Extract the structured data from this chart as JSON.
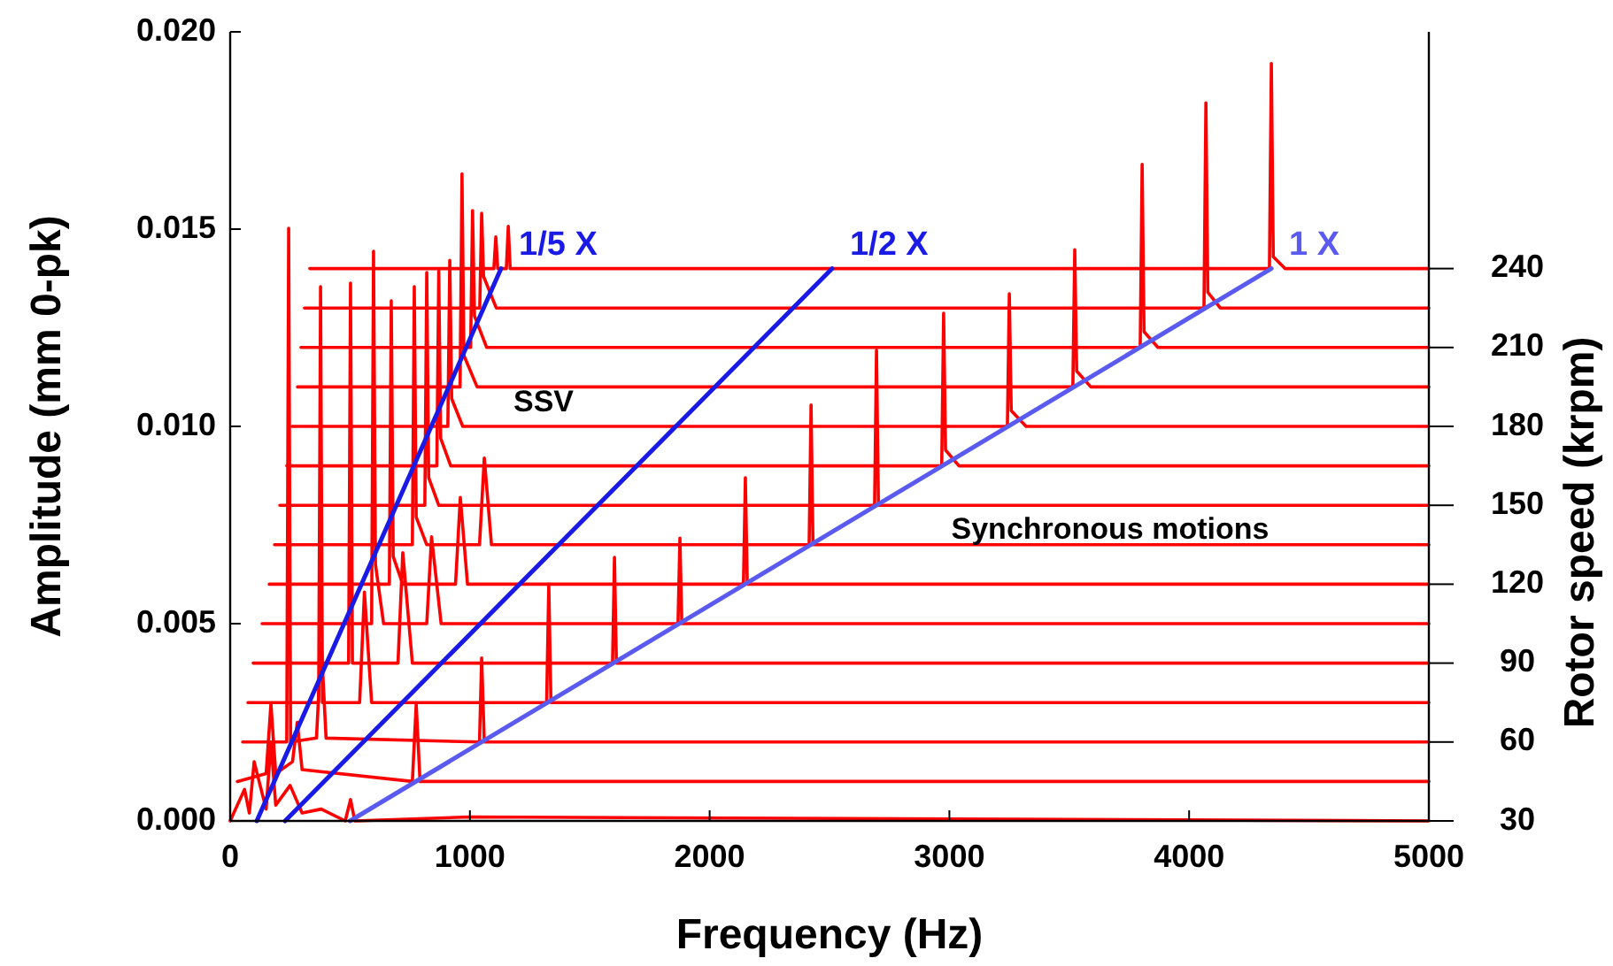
{
  "chart_data": {
    "type": "line",
    "xlabel": "Frequency (Hz)",
    "ylabel": "Amplitude (mm 0-pk)",
    "y2label": "Rotor speed (krpm)",
    "xlim": [
      0,
      5000
    ],
    "xticks": [
      0,
      1000,
      2000,
      3000,
      4000,
      5000
    ],
    "ylim": [
      0,
      0.02
    ],
    "yticks": [
      {
        "value": 0,
        "label": "0.000"
      },
      {
        "value": 0.005,
        "label": "0.005"
      },
      {
        "value": 0.01,
        "label": "0.010"
      },
      {
        "value": 0.015,
        "label": "0.015"
      },
      {
        "value": 0.02,
        "label": "0.020"
      }
    ],
    "y2lim": [
      30,
      330
    ],
    "y2ticks": [
      30,
      60,
      90,
      120,
      150,
      180,
      210,
      240
    ],
    "grid": false,
    "marker": "none",
    "line_style": "solid",
    "series": [
      {
        "color": "#ff0000",
        "x": [
          0,
          60,
          80,
          100,
          150,
          170,
          190,
          250,
          300,
          380,
          480,
          502,
          520,
          1000,
          5000
        ],
        "values": [
          0,
          0.0008,
          0.0002,
          0.0015,
          0.0003,
          0.002,
          0.0004,
          0.0009,
          0.0002,
          0.0003,
          0,
          0.00054,
          0,
          0.0001,
          0
        ]
      },
      {
        "color": "#ff0000",
        "x": [
          30,
          150,
          170,
          190,
          260,
          280,
          300,
          760,
          776,
          792,
          5000
        ],
        "values": [
          0.001,
          0.0012,
          0.00296,
          0.0012,
          0.0015,
          0.0025,
          0.0013,
          0.001,
          0.00296,
          0.001,
          0.001
        ]
      },
      {
        "color": "#ff0000",
        "x": [
          52,
          236,
          244,
          252,
          360,
          380,
          400,
          1040,
          1049,
          1060,
          5000
        ],
        "values": [
          0.002,
          0.002,
          0.01502,
          0.002,
          0.0021,
          0.0045,
          0.0021,
          0.002,
          0.00413,
          0.002,
          0.002
        ]
      },
      {
        "color": "#ff0000",
        "x": [
          74,
          369,
          377,
          385,
          540,
          560,
          590,
          1320,
          1329,
          1338,
          5000
        ],
        "values": [
          0.003,
          0.003,
          0.01354,
          0.003,
          0.003,
          0.0058,
          0.003,
          0.003,
          0.006,
          0.003,
          0.003
        ]
      },
      {
        "color": "#ff0000",
        "x": [
          96,
          494,
          502,
          510,
          700,
          720,
          760,
          1595,
          1603,
          1611,
          5000
        ],
        "values": [
          0.004,
          0.004,
          0.01363,
          0.004,
          0.004,
          0.0068,
          0.004,
          0.004,
          0.00668,
          0.004,
          0.004
        ]
      },
      {
        "color": "#ff0000",
        "x": [
          133,
          590,
          598,
          606,
          640,
          820,
          840,
          880,
          1868,
          1876,
          1884,
          5000
        ],
        "values": [
          0.005,
          0.005,
          0.01444,
          0.0065,
          0.005,
          0.005,
          0.0072,
          0.005,
          0.005,
          0.00717,
          0.005,
          0.005
        ]
      },
      {
        "color": "#ff0000",
        "x": [
          163,
          664,
          672,
          680,
          720,
          940,
          960,
          990,
          2141,
          2149,
          2157,
          5000
        ],
        "values": [
          0.006,
          0.006,
          0.01318,
          0.0067,
          0.006,
          0.006,
          0.0082,
          0.006,
          0.006,
          0.0087,
          0.006,
          0.006
        ]
      },
      {
        "color": "#ff0000",
        "x": [
          185,
          760,
          768,
          776,
          820,
          1040,
          1060,
          1090,
          2415,
          2423,
          2431,
          5000
        ],
        "values": [
          0.007,
          0.007,
          0.01354,
          0.0077,
          0.007,
          0.007,
          0.0092,
          0.007,
          0.007,
          0.01054,
          0.007,
          0.007
        ]
      },
      {
        "color": "#ff0000",
        "x": [
          207,
          812,
          820,
          828,
          870,
          2688,
          2696,
          2704,
          5000
        ],
        "values": [
          0.008,
          0.008,
          0.0139,
          0.0087,
          0.008,
          0.008,
          0.01193,
          0.008,
          0.008
        ]
      },
      {
        "color": "#ff0000",
        "x": [
          236,
          862,
          870,
          878,
          920,
          2968,
          2976,
          2984,
          3040,
          5000
        ],
        "values": [
          0.009,
          0.009,
          0.01394,
          0.0097,
          0.009,
          0.009,
          0.01287,
          0.0094,
          0.009,
          0.009
        ]
      },
      {
        "color": "#ff0000",
        "x": [
          258,
          908,
          916,
          924,
          970,
          3242,
          3250,
          3258,
          3320,
          5000
        ],
        "values": [
          0.01,
          0.01,
          0.01421,
          0.0107,
          0.01,
          0.01,
          0.01336,
          0.0104,
          0.01,
          0.01
        ]
      },
      {
        "color": "#ff0000",
        "x": [
          281,
          959,
          967,
          975,
          1030,
          3515,
          3523,
          3531,
          3590,
          5000
        ],
        "values": [
          0.011,
          0.011,
          0.0164,
          0.0118,
          0.011,
          0.011,
          0.01448,
          0.0114,
          0.011,
          0.011
        ]
      },
      {
        "color": "#ff0000",
        "x": [
          295,
          1003,
          1011,
          1019,
          1070,
          3796,
          3804,
          3812,
          3870,
          5000
        ],
        "values": [
          0.012,
          0.012,
          0.01547,
          0.0128,
          0.012,
          0.012,
          0.01664,
          0.0124,
          0.012,
          0.012
        ]
      },
      {
        "color": "#ff0000",
        "x": [
          310,
          1041,
          1049,
          1057,
          1110,
          4062,
          4070,
          4078,
          4130,
          5000
        ],
        "values": [
          0.013,
          0.013,
          0.0154,
          0.0138,
          0.013,
          0.013,
          0.0182,
          0.0134,
          0.013,
          0.013
        ]
      },
      {
        "color": "#ff0000",
        "x": [
          332,
          1100,
          1108,
          1116,
          1152,
          1160,
          1168,
          4335,
          4343,
          4351,
          4400,
          5000
        ],
        "values": [
          0.014,
          0.014,
          0.0148,
          0.014,
          0.014,
          0.01507,
          0.014,
          0.014,
          0.0192,
          0.0143,
          0.014,
          0.014
        ]
      },
      {
        "name": "1/5 X",
        "color": "#1a1ae6",
        "x": [
          111,
          1130
        ],
        "values": [
          0,
          0.014
        ]
      },
      {
        "name": "1/2 X",
        "color": "#1a1ae6",
        "x": [
          229,
          2511
        ],
        "values": [
          0,
          0.014
        ]
      },
      {
        "name": "1 X",
        "color": "#5a5af0",
        "x": [
          500,
          4343
        ],
        "values": [
          0,
          0.014
        ]
      }
    ],
    "annotations": [
      "SSV",
      "Synchronous motions"
    ]
  }
}
